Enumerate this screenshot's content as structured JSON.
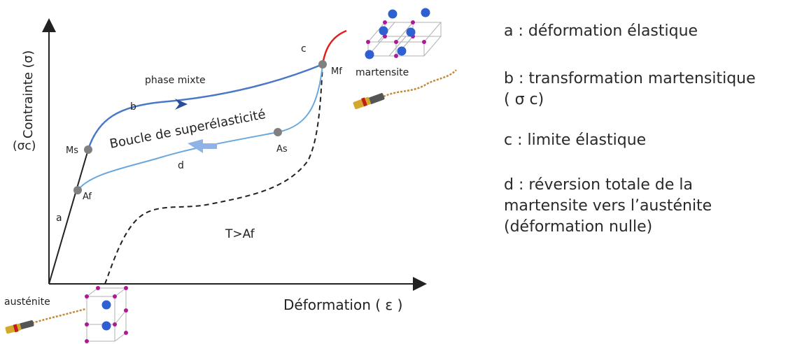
{
  "axes": {
    "y_label": "Contrainte (σ)",
    "x_label": "Déformation ( ε )",
    "sigma_c": "(σc)"
  },
  "points": {
    "ms": "Ms",
    "af": "Af",
    "as": "As",
    "mf": "Mf"
  },
  "segments": {
    "a": "a",
    "b": "b",
    "c": "c",
    "d": "d"
  },
  "annotations": {
    "phase_mixte": "phase mixte",
    "loop": "Boucle de superélasticité",
    "temperature": "T>Af",
    "martensite": "martensite",
    "austenite": "austénite"
  },
  "legend": {
    "a": "a : déformation élastique",
    "b_line1": "b : transformation martensitique",
    "b_line2": "( σ c)",
    "c": "c : limite élastique",
    "d_line1": "d : réversion totale de la",
    "d_line2": "martensite vers l’austénite",
    "d_line3": "(déformation nulle)"
  },
  "colors": {
    "loading_curve": "#4a78c8",
    "unloading_curve": "#6aa8dc",
    "plastic_curve": "#e02020",
    "point_marker": "#808080",
    "atom_blue": "#2f5fd0",
    "atom_magenta": "#b0189a"
  }
}
